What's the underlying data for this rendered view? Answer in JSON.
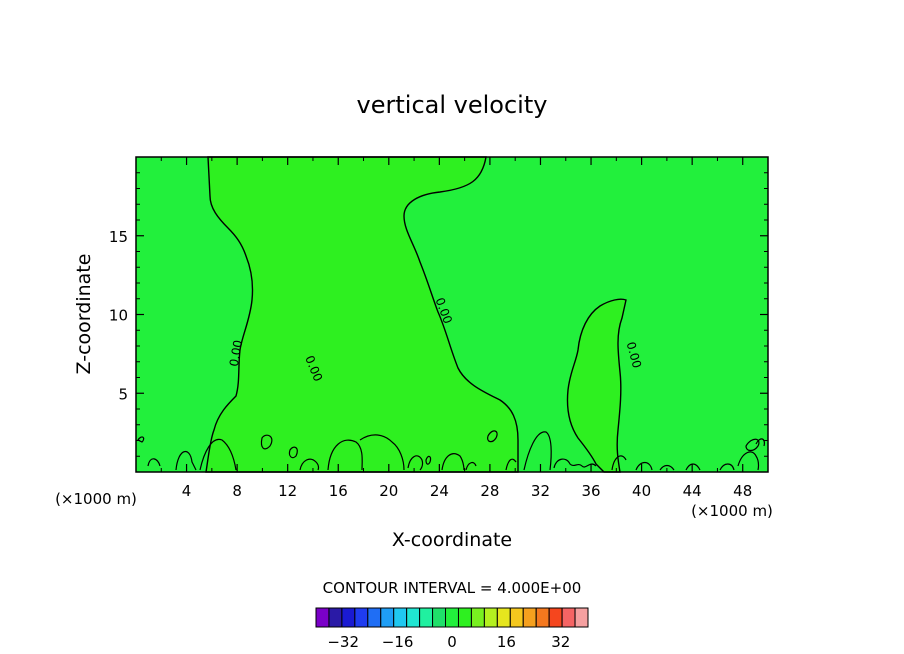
{
  "chart_data": {
    "type": "heatmap",
    "title": "vertical velocity",
    "xlabel": "X-coordinate",
    "ylabel": "Z-coordinate",
    "x_unit_left": "(×1000 m)",
    "x_unit_right": "(×1000 m)",
    "xlim": [
      0,
      50
    ],
    "ylim": [
      0,
      20
    ],
    "x_ticks": [
      4,
      8,
      12,
      16,
      20,
      24,
      28,
      32,
      36,
      40,
      44,
      48
    ],
    "y_ticks": [
      5,
      10,
      15
    ],
    "contour_label": "0.00",
    "contour_interval_text": "CONTOUR INTERVAL = 4.000E+00",
    "colorbar": {
      "levels": [
        -40,
        -36,
        -32,
        -28,
        -24,
        -20,
        -16,
        -12,
        -8,
        -4,
        0,
        4,
        8,
        12,
        16,
        20,
        24,
        28,
        32,
        36,
        40
      ],
      "tick_values": [
        -32,
        -16,
        0,
        16,
        32
      ],
      "tick_labels": [
        "−32",
        "−16",
        "0",
        "16",
        "32"
      ],
      "colors": [
        "#7a00c8",
        "#2a1aa6",
        "#1a1ad2",
        "#1f3cf0",
        "#1f6ef5",
        "#1f9ef5",
        "#20c8f0",
        "#20e6d2",
        "#20f0a0",
        "#1fe06a",
        "#22f03c",
        "#2ef020",
        "#78f020",
        "#b4f020",
        "#e6e61e",
        "#f5c81e",
        "#f5a01e",
        "#f5781e",
        "#f5461e",
        "#f56464",
        "#f5a0a0"
      ]
    },
    "background_color": "#22f03c",
    "upward_region_color": "#2ef020"
  }
}
